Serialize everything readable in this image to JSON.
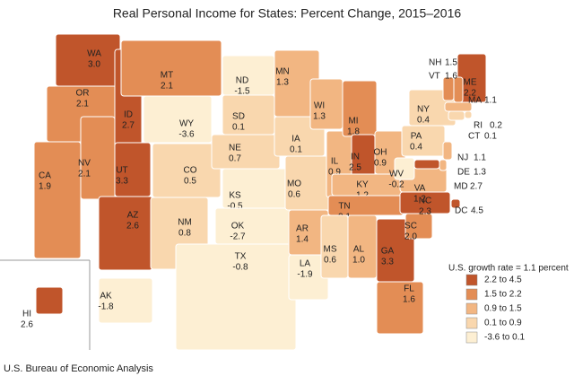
{
  "title": "Real Personal Income for States: Percent Change, 2015–2016",
  "states": [
    {
      "abbr": "WA",
      "value": 3.0,
      "label": "3.0"
    },
    {
      "abbr": "OR",
      "value": 2.1
    },
    {
      "abbr": "CA",
      "value": 1.9
    },
    {
      "abbr": "NV",
      "value": 2.1
    },
    {
      "abbr": "ID",
      "value": 2.7
    },
    {
      "abbr": "MT",
      "value": 2.1
    },
    {
      "abbr": "WY",
      "value": -3.6
    },
    {
      "abbr": "UT",
      "value": 3.3
    },
    {
      "abbr": "AZ",
      "value": 2.6
    },
    {
      "abbr": "CO",
      "value": 0.5
    },
    {
      "abbr": "NM",
      "value": 0.8
    },
    {
      "abbr": "ND",
      "value": -1.5
    },
    {
      "abbr": "SD",
      "value": 0.1
    },
    {
      "abbr": "NE",
      "value": 0.7
    },
    {
      "abbr": "KS",
      "value": -0.5
    },
    {
      "abbr": "OK",
      "value": -2.7
    },
    {
      "abbr": "TX",
      "value": -0.8
    },
    {
      "abbr": "MN",
      "value": 1.3
    },
    {
      "abbr": "IA",
      "value": 0.1
    },
    {
      "abbr": "MO",
      "value": 0.6
    },
    {
      "abbr": "AR",
      "value": 1.4
    },
    {
      "abbr": "LA",
      "value": -1.9
    },
    {
      "abbr": "WI",
      "value": 1.3
    },
    {
      "abbr": "IL",
      "value": 0.9
    },
    {
      "abbr": "MI",
      "value": 1.8
    },
    {
      "abbr": "IN",
      "value": 2.5
    },
    {
      "abbr": "OH",
      "value": 0.9
    },
    {
      "abbr": "KY",
      "value": 1.2
    },
    {
      "abbr": "TN",
      "value": 2.1
    },
    {
      "abbr": "MS",
      "value": 0.6
    },
    {
      "abbr": "AL",
      "value": 1.0,
      "label": "1.0"
    },
    {
      "abbr": "GA",
      "value": 3.3
    },
    {
      "abbr": "FL",
      "value": 1.6
    },
    {
      "abbr": "SC",
      "value": 2.0,
      "label": "2.0"
    },
    {
      "abbr": "NC",
      "value": 2.3
    },
    {
      "abbr": "VA",
      "value": 1.2
    },
    {
      "abbr": "WV",
      "value": -0.2
    },
    {
      "abbr": "PA",
      "value": 0.4
    },
    {
      "abbr": "NY",
      "value": 0.4
    },
    {
      "abbr": "ME",
      "value": 2.2
    },
    {
      "abbr": "NH",
      "value": 1.5
    },
    {
      "abbr": "VT",
      "value": 1.6
    },
    {
      "abbr": "MA",
      "value": 1.1
    },
    {
      "abbr": "RI",
      "value": 0.2
    },
    {
      "abbr": "CT",
      "value": 0.1
    },
    {
      "abbr": "NJ",
      "value": 1.1
    },
    {
      "abbr": "DE",
      "value": 1.3
    },
    {
      "abbr": "MD",
      "value": 2.7
    },
    {
      "abbr": "DC",
      "value": 4.5
    },
    {
      "abbr": "HI",
      "value": 2.6
    },
    {
      "abbr": "AK",
      "value": -1.8
    }
  ],
  "legend": {
    "title": "U.S. growth rate = 1.1 percent",
    "bins": [
      {
        "label": "2.2 to 4.5",
        "from": 2.2,
        "to": 4.5,
        "color": "#c0552b"
      },
      {
        "label": "1.5 to 2.2",
        "from": 1.5,
        "to": 2.2,
        "color": "#e38d55"
      },
      {
        "label": "0.9 to 1.5",
        "from": 0.9,
        "to": 1.5,
        "color": "#f2b682"
      },
      {
        "label": "0.1 to 0.9",
        "from": 0.1,
        "to": 0.9,
        "color": "#f9d7ae"
      },
      {
        "label": "-3.6 to 0.1",
        "from": -3.6,
        "to": 0.1,
        "color": "#fdefd3"
      }
    ]
  },
  "source": "U.S. Bureau of Economic Analysis"
}
